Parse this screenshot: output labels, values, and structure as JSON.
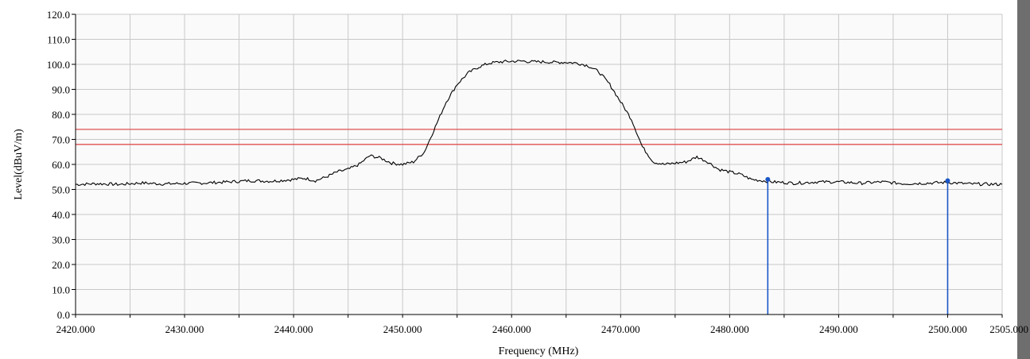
{
  "chart_data": {
    "type": "line",
    "title": "",
    "xlabel": "Frequency (MHz)",
    "ylabel": "Level(dBuV/m)",
    "xlim": [
      2420.0,
      2505.0
    ],
    "ylim": [
      0.0,
      120.0
    ],
    "grid": true,
    "x_ticks": [
      2420.0,
      2425.0,
      2430.0,
      2435.0,
      2440.0,
      2445.0,
      2450.0,
      2455.0,
      2460.0,
      2465.0,
      2470.0,
      2475.0,
      2480.0,
      2485.0,
      2490.0,
      2495.0,
      2500.0,
      2505.0
    ],
    "x_tick_labels": [
      "2420.000",
      "2430.000",
      "2440.000",
      "2450.000",
      "2460.000",
      "2470.000",
      "2480.000",
      "2490.000",
      "2500.000",
      "2505.000"
    ],
    "x_tick_label_values": [
      2420.0,
      2430.0,
      2440.0,
      2450.0,
      2460.0,
      2470.0,
      2480.0,
      2490.0,
      2500.0,
      2505.0
    ],
    "y_ticks": [
      0,
      10,
      20,
      30,
      40,
      50,
      60,
      70,
      80,
      90,
      100,
      110,
      120
    ],
    "y_tick_labels": [
      "0.0",
      "10.0",
      "20.0",
      "30.0",
      "40.0",
      "50.0",
      "60.0",
      "70.0",
      "80.0",
      "90.0",
      "100.0",
      "110.0",
      "120.0"
    ],
    "series": [
      {
        "color": "#000000",
        "x": [
          2420.0,
          2422.0,
          2424.0,
          2426.0,
          2428.0,
          2430.0,
          2432.0,
          2434.0,
          2436.0,
          2438.0,
          2440.0,
          2441.0,
          2442.0,
          2443.0,
          2444.0,
          2445.0,
          2446.0,
          2447.0,
          2448.0,
          2449.0,
          2450.0,
          2451.0,
          2452.0,
          2453.0,
          2454.0,
          2455.0,
          2456.0,
          2457.0,
          2458.0,
          2459.0,
          2460.0,
          2461.0,
          2462.0,
          2463.0,
          2464.0,
          2465.0,
          2466.0,
          2467.0,
          2468.0,
          2469.0,
          2470.0,
          2471.0,
          2472.0,
          2473.0,
          2474.0,
          2475.0,
          2476.0,
          2477.0,
          2478.0,
          2479.0,
          2480.0,
          2481.0,
          2482.0,
          2484.0,
          2486.0,
          2488.0,
          2490.0,
          2492.0,
          2494.0,
          2496.0,
          2498.0,
          2500.0,
          2502.0,
          2505.0
        ],
        "y": [
          52.0,
          52.3,
          52.0,
          52.6,
          52.2,
          52.4,
          52.6,
          53.0,
          53.5,
          53.3,
          54.0,
          54.5,
          53.5,
          55.0,
          57.0,
          58.0,
          60.0,
          63.5,
          62.5,
          60.5,
          60.0,
          61.0,
          65.0,
          75.0,
          85.0,
          92.0,
          96.5,
          99.0,
          100.5,
          101.0,
          101.2,
          101.3,
          101.0,
          101.0,
          100.8,
          100.8,
          100.5,
          99.5,
          97.0,
          92.0,
          85.0,
          78.0,
          67.0,
          61.0,
          60.0,
          60.5,
          61.0,
          63.0,
          61.0,
          58.0,
          57.0,
          56.0,
          54.0,
          53.0,
          52.5,
          53.0,
          53.0,
          52.5,
          53.0,
          52.3,
          52.5,
          52.8,
          52.2,
          52.0
        ]
      }
    ],
    "limit_lines": [
      {
        "y": 74.0,
        "color": "#e05050"
      },
      {
        "y": 68.0,
        "color": "#e05050"
      }
    ],
    "markers": [
      {
        "x": 2483.5,
        "y": 54.0,
        "color": "#1a56c8"
      },
      {
        "x": 2500.0,
        "y": 53.5,
        "color": "#1a56c8"
      }
    ],
    "colors": {
      "plot_background": "#fafafa",
      "grid": "#c8c8c8",
      "frame_right": "#6e6e6e"
    }
  }
}
